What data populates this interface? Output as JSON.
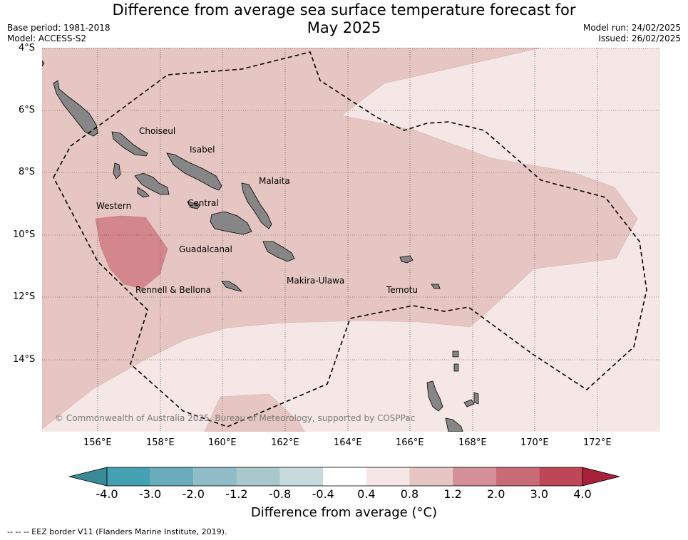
{
  "header": {
    "title_line1": "Difference from average sea surface temperature forecast for",
    "title_line2": "May 2025",
    "base_period": "Base period: 1981-2018",
    "model": "Model: ACCESS-S2",
    "model_run": "Model run: 24/02/2025",
    "issued": "Issued: 26/02/2025"
  },
  "map": {
    "lat_labels": [
      "4°S",
      "6°S",
      "8°S",
      "10°S",
      "12°S",
      "14°S"
    ],
    "lon_labels": [
      "156°E",
      "158°E",
      "160°E",
      "162°E",
      "164°E",
      "166°E",
      "168°E",
      "170°E",
      "172°E"
    ],
    "province_labels": [
      "Choiseul",
      "Isabel",
      "Malaita",
      "Western",
      "Central",
      "Guadalcanal",
      "Makira-Ulawa",
      "Temotu",
      "Rennell & Bellona"
    ],
    "copyright": "© Commonwealth of Australia 2025, Bureau of Meteorology, supported by COSPPac",
    "colors": {
      "ocean_high": "#e6c6c2",
      "ocean_low": "#f4e7e5",
      "anomaly_hot": "#d4868f",
      "land": "#868686"
    }
  },
  "colorbar": {
    "ticks": [
      "-4.0",
      "-3.0",
      "-2.0",
      "-1.2",
      "-0.8",
      "-0.4",
      "0.4",
      "0.8",
      "1.2",
      "2.0",
      "3.0",
      "4.0"
    ],
    "colors": [
      "#3a8a96",
      "#45a1b2",
      "#6aacbc",
      "#8fbcc6",
      "#a9c8cc",
      "#c9dadd",
      "#ffffff",
      "#f4e7e5",
      "#e6c6c2",
      "#d58f96",
      "#c96b76",
      "#bd4756",
      "#a8203a"
    ],
    "title": "Difference from average (",
    "title_unit": "°C)"
  },
  "footer": {
    "eez_note": "--  --  -- EEZ border V11 (Flanders Marine Institute, 2019)."
  }
}
